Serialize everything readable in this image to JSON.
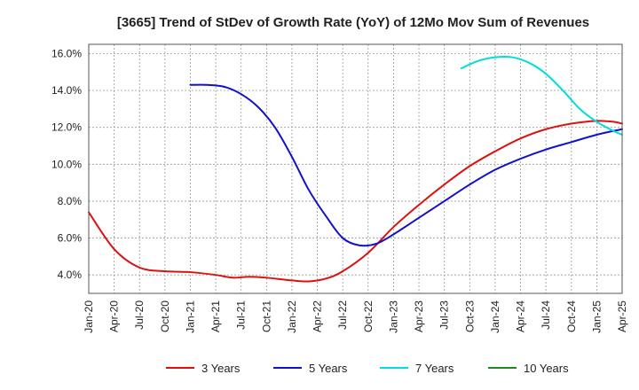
{
  "chart_data": {
    "type": "line",
    "title": "[3665]  Trend of StDev of Growth Rate (YoY) of 12Mo Mov Sum of Revenues",
    "xlabel": "",
    "ylabel": "",
    "ylim": [
      3.0,
      16.5
    ],
    "yticks": [
      4.0,
      6.0,
      8.0,
      10.0,
      12.0,
      14.0,
      16.0
    ],
    "ytick_labels": [
      "4.0%",
      "6.0%",
      "8.0%",
      "10.0%",
      "12.0%",
      "14.0%",
      "16.0%"
    ],
    "xtick_labels": [
      "Jan-20",
      "Apr-20",
      "Jul-20",
      "Oct-20",
      "Jan-21",
      "Apr-21",
      "Jul-21",
      "Oct-21",
      "Jan-22",
      "Apr-22",
      "Jul-22",
      "Oct-22",
      "Jan-23",
      "Apr-23",
      "Jul-23",
      "Oct-23",
      "Jan-24",
      "Apr-24",
      "Jul-24",
      "Oct-24",
      "Jan-25",
      "Apr-25"
    ],
    "x_unit": "month index since Jan-20",
    "xlim": [
      0,
      63
    ],
    "grid": true,
    "legend_position": "bottom",
    "series": [
      {
        "name": "3 Years",
        "color": "#dd1111",
        "points": [
          [
            0,
            7.4
          ],
          [
            3,
            5.4
          ],
          [
            6,
            4.4
          ],
          [
            9,
            4.2
          ],
          [
            12,
            4.15
          ],
          [
            15,
            4.0
          ],
          [
            17,
            3.85
          ],
          [
            19,
            3.9
          ],
          [
            21,
            3.85
          ],
          [
            24,
            3.7
          ],
          [
            26,
            3.65
          ],
          [
            28,
            3.8
          ],
          [
            30,
            4.2
          ],
          [
            33,
            5.2
          ],
          [
            36,
            6.6
          ],
          [
            39,
            7.8
          ],
          [
            42,
            8.9
          ],
          [
            45,
            9.9
          ],
          [
            48,
            10.7
          ],
          [
            51,
            11.4
          ],
          [
            54,
            11.9
          ],
          [
            57,
            12.2
          ],
          [
            60,
            12.35
          ],
          [
            62,
            12.3
          ],
          [
            63,
            12.2
          ]
        ]
      },
      {
        "name": "5 Years",
        "color": "#1111cc",
        "points": [
          [
            12,
            14.3
          ],
          [
            14,
            14.3
          ],
          [
            16,
            14.2
          ],
          [
            18,
            13.8
          ],
          [
            20,
            13.1
          ],
          [
            22,
            12.0
          ],
          [
            24,
            10.4
          ],
          [
            26,
            8.6
          ],
          [
            28,
            7.2
          ],
          [
            30,
            6.0
          ],
          [
            32,
            5.6
          ],
          [
            34,
            5.7
          ],
          [
            36,
            6.2
          ],
          [
            39,
            7.1
          ],
          [
            42,
            8.0
          ],
          [
            45,
            8.9
          ],
          [
            48,
            9.7
          ],
          [
            51,
            10.3
          ],
          [
            54,
            10.8
          ],
          [
            57,
            11.2
          ],
          [
            60,
            11.6
          ],
          [
            63,
            11.9
          ]
        ]
      },
      {
        "name": "7 Years",
        "color": "#00dddd",
        "points": [
          [
            44,
            15.2
          ],
          [
            46,
            15.6
          ],
          [
            48,
            15.8
          ],
          [
            50,
            15.8
          ],
          [
            52,
            15.5
          ],
          [
            54,
            14.9
          ],
          [
            56,
            14.0
          ],
          [
            58,
            13.0
          ],
          [
            60,
            12.3
          ],
          [
            62,
            11.8
          ],
          [
            63,
            11.6
          ]
        ]
      },
      {
        "name": "10 Years",
        "color": "#228822",
        "points": []
      }
    ]
  }
}
